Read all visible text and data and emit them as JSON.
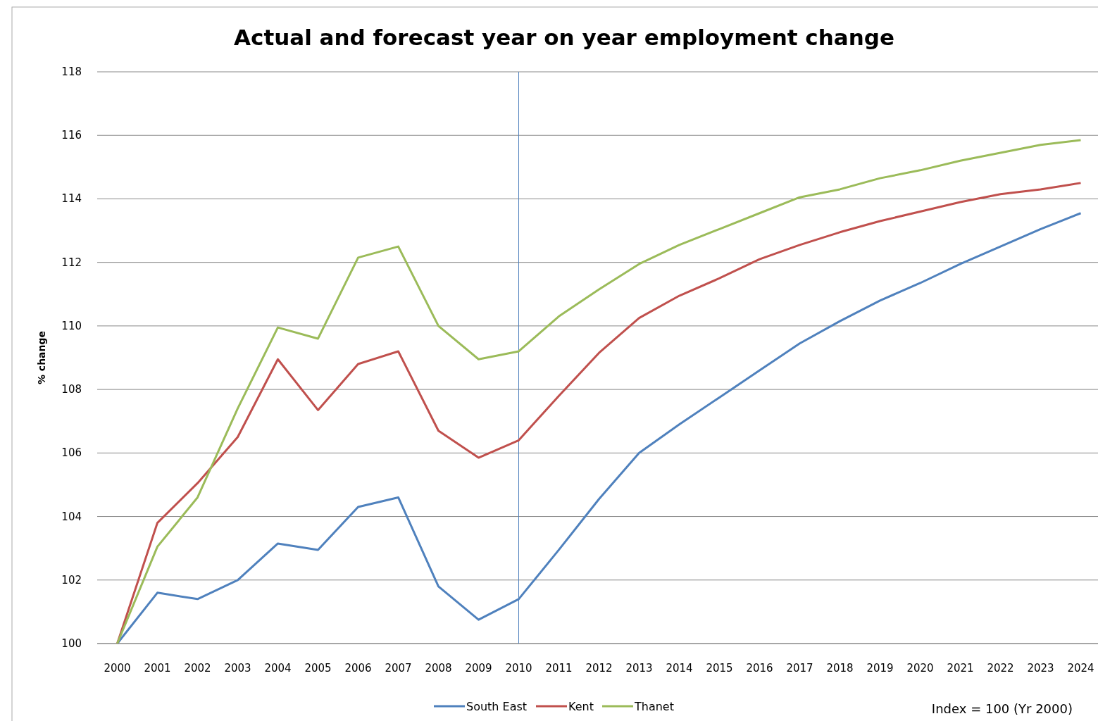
{
  "chart_data": {
    "type": "line",
    "title": "Actual and forecast year on year employment change",
    "ylabel": "% change",
    "categories": [
      "2000",
      "2001",
      "2002",
      "2003",
      "2004",
      "2005",
      "2006",
      "2007",
      "2008",
      "2009",
      "2010",
      "2011",
      "2012",
      "2013",
      "2014",
      "2015",
      "2016",
      "2017",
      "2018",
      "2019",
      "2020",
      "2021",
      "2022",
      "2023",
      "2024"
    ],
    "series": [
      {
        "name": "South East",
        "color": "#4f81bd",
        "values": [
          100,
          101.6,
          101.4,
          102.0,
          103.15,
          102.95,
          104.3,
          104.6,
          101.8,
          100.75,
          101.4,
          102.95,
          104.55,
          106.0,
          106.9,
          107.75,
          108.6,
          109.45,
          110.15,
          110.8,
          111.35,
          111.95,
          112.5,
          113.05,
          113.55
        ]
      },
      {
        "name": "Kent",
        "color": "#c0504d",
        "values": [
          100,
          103.8,
          105.05,
          106.5,
          108.95,
          107.35,
          108.8,
          109.2,
          106.7,
          105.85,
          106.4,
          107.8,
          109.15,
          110.25,
          110.95,
          111.5,
          112.1,
          112.55,
          112.95,
          113.3,
          113.6,
          113.9,
          114.15,
          114.3,
          114.5
        ]
      },
      {
        "name": "Thanet",
        "color": "#9bbb59",
        "values": [
          100,
          103.05,
          104.6,
          107.4,
          109.95,
          109.6,
          112.15,
          112.5,
          110.0,
          108.95,
          109.2,
          110.3,
          111.15,
          111.95,
          112.55,
          113.05,
          113.55,
          114.05,
          114.3,
          114.65,
          114.9,
          115.2,
          115.45,
          115.7,
          115.85
        ]
      }
    ],
    "ylim": [
      100,
      118
    ],
    "yticks": [
      100,
      102,
      104,
      106,
      108,
      110,
      112,
      114,
      116,
      118
    ],
    "grid": "y",
    "legend": "bottom",
    "marker": "none",
    "line_style": "solid",
    "ref_lines": [
      {
        "axis": "x",
        "value": "2010",
        "color": "#4f81bd"
      }
    ],
    "annotations": [
      "Index = 100 (Yr 2000)"
    ]
  }
}
